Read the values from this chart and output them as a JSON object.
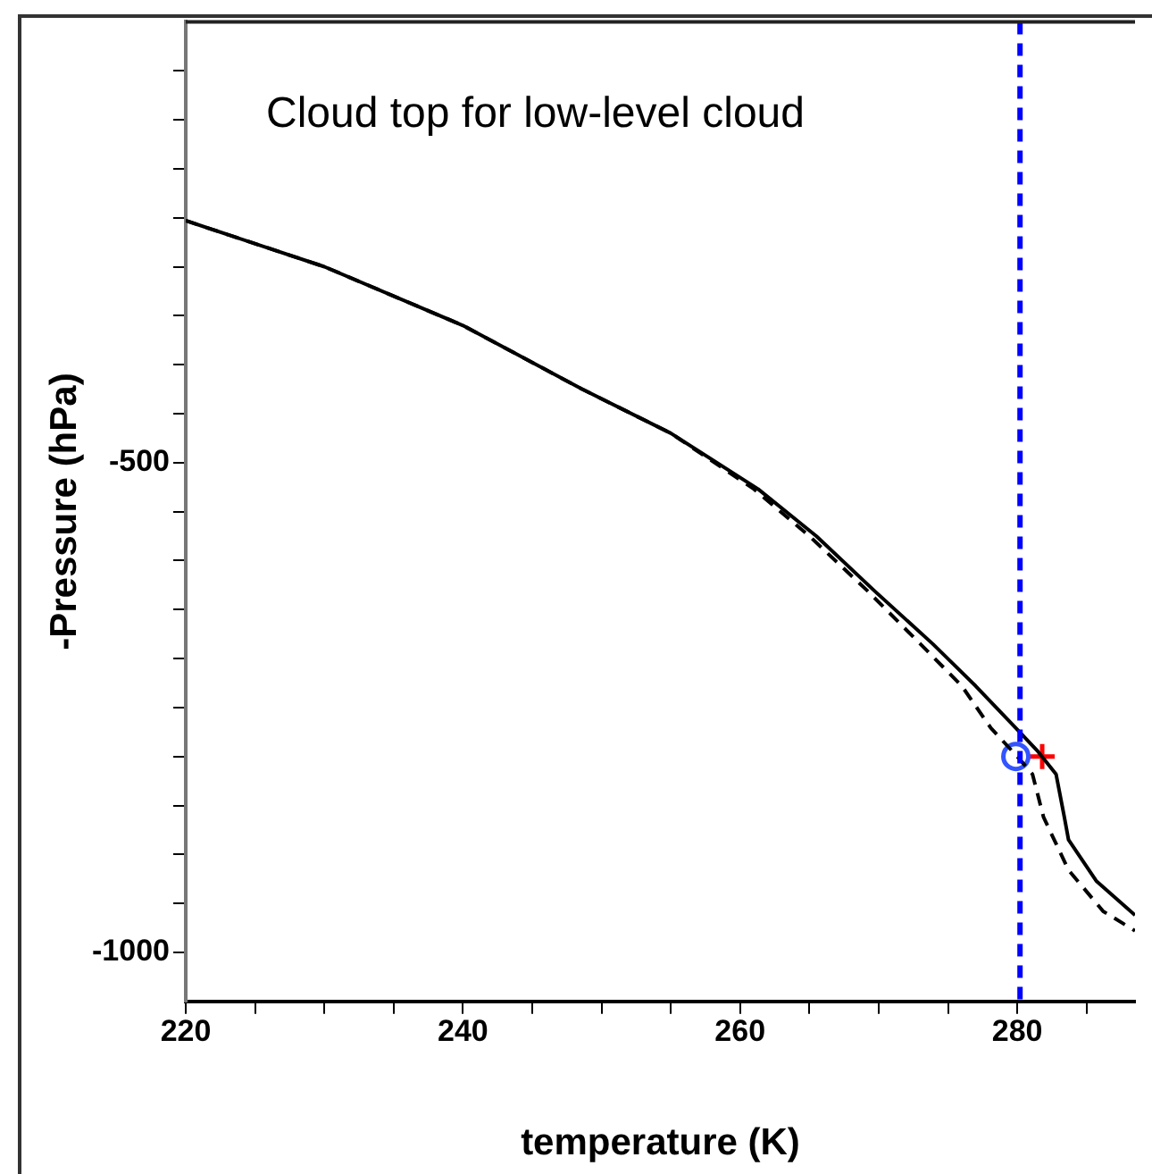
{
  "chart_data": {
    "type": "line",
    "xlabel": "temperature (K)",
    "ylabel": "-Pressure (hPa)",
    "annotations": [
      "Cloud top for low-level cloud"
    ],
    "xlim": [
      220,
      288.5
    ],
    "ylim": [
      -1050,
      -50
    ],
    "xticks": [
      220,
      {
        "value": 225,
        "label": null
      },
      {
        "value": 230,
        "label": null
      },
      {
        "value": 235,
        "label": null
      },
      240,
      {
        "value": 245,
        "label": null
      },
      {
        "value": 250,
        "label": null
      },
      {
        "value": 255,
        "label": null
      },
      260,
      {
        "value": 265,
        "label": null
      },
      {
        "value": 270,
        "label": null
      },
      {
        "value": 275,
        "label": null
      },
      280,
      {
        "value": 285,
        "label": null
      }
    ],
    "yticks": [
      -1000,
      {
        "value": -950,
        "label": null
      },
      {
        "value": -900,
        "label": null
      },
      {
        "value": -850,
        "label": null
      },
      {
        "value": -800,
        "label": null
      },
      {
        "value": -750,
        "label": null
      },
      {
        "value": -700,
        "label": null
      },
      {
        "value": -650,
        "label": null
      },
      {
        "value": -600,
        "label": null
      },
      {
        "value": -550,
        "label": null
      },
      -500,
      {
        "value": -450,
        "label": null
      },
      {
        "value": -400,
        "label": null
      },
      {
        "value": -350,
        "label": null
      },
      {
        "value": -300,
        "label": null
      },
      {
        "value": -250,
        "label": null
      },
      {
        "value": -200,
        "label": null
      },
      {
        "value": -150,
        "label": null
      },
      {
        "value": -100,
        "label": null
      }
    ],
    "grid": false,
    "legend": false,
    "ref_lines": [
      {
        "axis": "x",
        "value": 280.2,
        "color": "#0000ff",
        "line_style": "dashed"
      }
    ],
    "series": [
      {
        "color": "#000000",
        "line_style": "solid",
        "marker": "none",
        "x": [
          220,
          230,
          240,
          248.6,
          255,
          261.3,
          265.5,
          269.7,
          273.9,
          277,
          279.9,
          281.5,
          282.8,
          283.4,
          283.7,
          285.7,
          288.5
        ],
        "values": [
          -253,
          -300,
          -360,
          -425,
          -470,
          -527,
          -575,
          -631,
          -685,
          -728,
          -771,
          -795,
          -818,
          -862,
          -885,
          -927,
          -962
        ]
      },
      {
        "color": "#000000",
        "line_style": "dashed",
        "marker": "none",
        "x": [
          220,
          230,
          240,
          248.6,
          255,
          261,
          265,
          269.2,
          273,
          276,
          278.1,
          280,
          281.1,
          281.9,
          283.7,
          286.2,
          288.5
        ],
        "values": [
          -253,
          -300,
          -360,
          -425,
          -470,
          -527,
          -575,
          -631,
          -685,
          -728,
          -771,
          -800,
          -818,
          -862,
          -916,
          -958,
          -978
        ]
      },
      {
        "type": "scatter",
        "color": "#3355ff",
        "marker": "circle",
        "x": [
          279.9
        ],
        "values": [
          -800
        ]
      },
      {
        "type": "scatter",
        "color": "#ff0000",
        "marker": "cross",
        "x": [
          281.8
        ],
        "values": [
          -800
        ]
      }
    ]
  }
}
